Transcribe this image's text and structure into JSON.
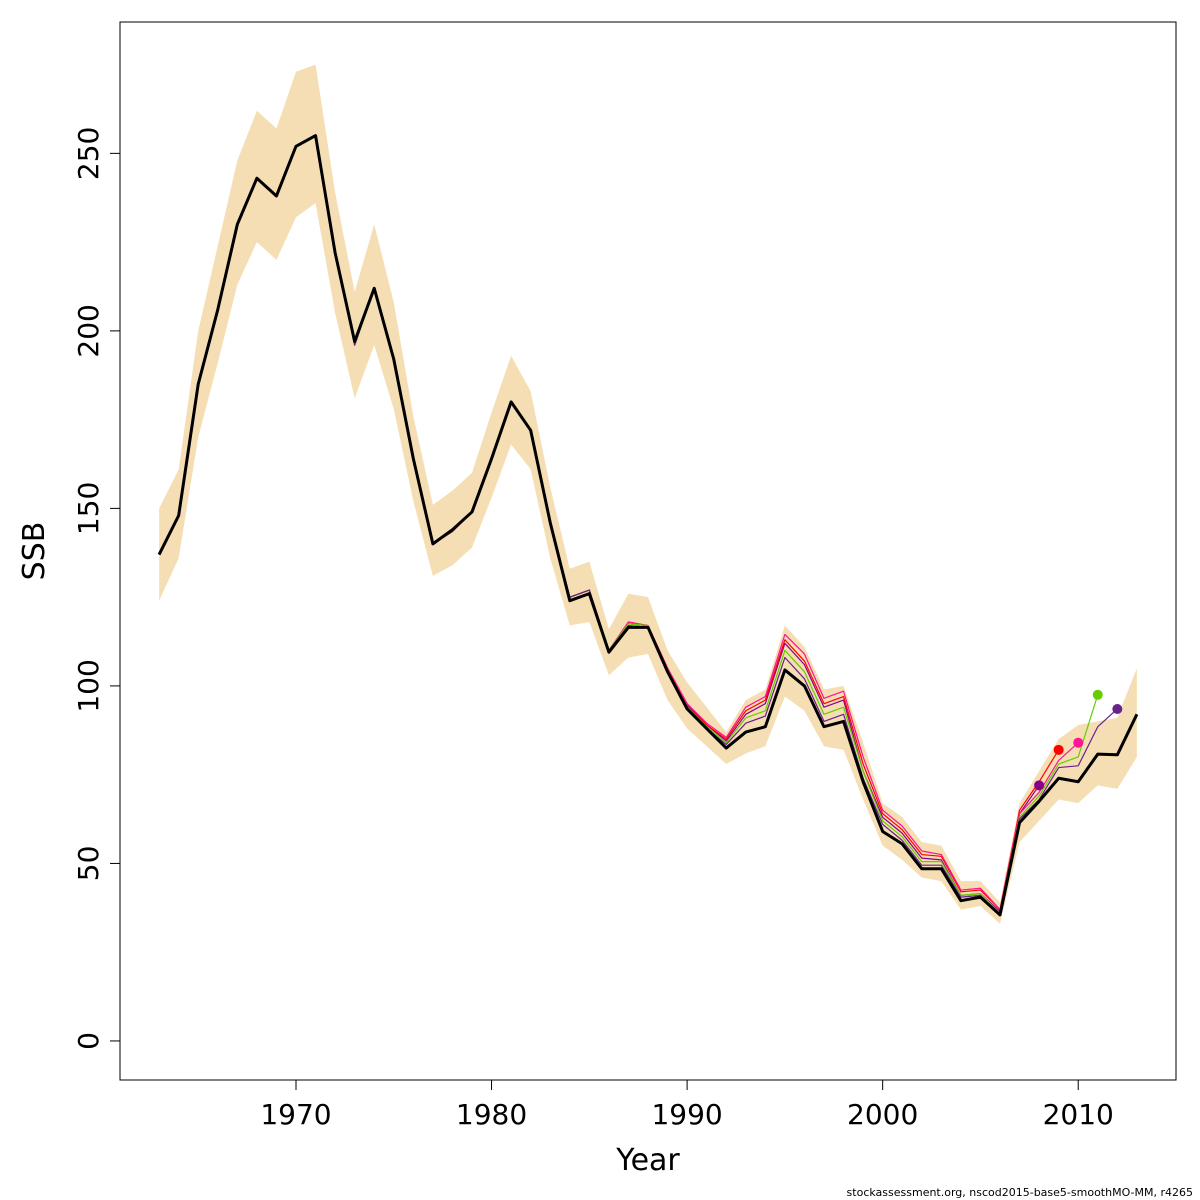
{
  "chart_data": {
    "type": "line",
    "title": "",
    "xlabel": "Year",
    "ylabel": "SSB",
    "xlim": [
      1961,
      2015
    ],
    "ylim": [
      -11,
      287
    ],
    "xticks": [
      "1970",
      "1980",
      "1990",
      "2000",
      "2010"
    ],
    "yticks": [
      "0",
      "50",
      "100",
      "150",
      "200",
      "250"
    ],
    "grid": false,
    "legend": "none",
    "credit": "stockassessment.org, nscod2015-base5-smoothMO-MM, r4265",
    "colors": {
      "band": "#f5deb3",
      "main": "#000000",
      "retro": [
        "#8b008b",
        "#ff0000",
        "#ff1493",
        "#66cd00",
        "#68228b"
      ]
    },
    "band": {
      "years": [
        1963,
        1964,
        1965,
        1966,
        1967,
        1968,
        1969,
        1970,
        1971,
        1972,
        1973,
        1974,
        1975,
        1976,
        1977,
        1978,
        1979,
        1980,
        1981,
        1982,
        1983,
        1984,
        1985,
        1986,
        1987,
        1988,
        1989,
        1990,
        1991,
        1992,
        1993,
        1994,
        1995,
        1996,
        1997,
        1998,
        1999,
        2000,
        2001,
        2002,
        2003,
        2004,
        2005,
        2006,
        2007,
        2008,
        2009,
        2010,
        2011,
        2012,
        2013
      ],
      "lower": [
        124,
        136,
        170,
        191,
        213,
        225,
        220,
        232,
        236,
        205,
        181,
        196,
        178,
        152,
        131,
        134,
        139,
        153,
        168,
        161,
        136,
        117,
        118,
        103,
        108,
        109,
        96,
        88,
        83,
        78,
        81,
        83,
        97,
        93,
        83,
        82,
        68,
        55,
        51,
        46,
        45,
        37,
        38,
        33,
        56,
        62,
        68,
        67,
        72,
        71,
        80
      ],
      "upper": [
        150,
        161,
        200,
        224,
        248,
        262,
        257,
        273,
        275,
        239,
        211,
        230,
        208,
        176,
        151,
        155,
        160,
        177,
        193,
        183,
        156,
        133,
        135,
        116,
        126,
        125,
        110,
        101,
        94,
        87,
        96,
        99,
        117,
        111,
        99,
        100,
        84,
        67,
        63,
        56,
        55,
        45,
        45,
        39,
        67,
        76,
        85,
        89,
        90,
        91,
        105
      ]
    },
    "series": [
      {
        "x": [
          1963,
          1964,
          1965,
          1966,
          1967,
          1968,
          1969,
          1970,
          1971,
          1972,
          1973,
          1974,
          1975,
          1976,
          1977,
          1978,
          1979,
          1980,
          1981,
          1982,
          1983,
          1984,
          1985,
          1986,
          1987,
          1988,
          1989,
          1990,
          1991,
          1992,
          1993,
          1994,
          1995,
          1996,
          1997,
          1998,
          1999,
          2000,
          2001,
          2002,
          2003,
          2004,
          2005,
          2006,
          2007,
          2008,
          2009,
          2010,
          2011,
          2012,
          2013
        ],
        "values": [
          137,
          148,
          185,
          206,
          230,
          243,
          238,
          252,
          255,
          222,
          197,
          212,
          192,
          164,
          140,
          144,
          149,
          164,
          180,
          172,
          146,
          124,
          126,
          109.5,
          116.5,
          116.5,
          104,
          93.5,
          88,
          82.5,
          87,
          88.5,
          104.5,
          100,
          88.5,
          90,
          73,
          59,
          55.5,
          48.5,
          48.5,
          39.5,
          40.5,
          35.5,
          61.5,
          67.5,
          74,
          73,
          80.8,
          80.6,
          92
        ]
      },
      {
        "x": [
          1963,
          1964,
          1965,
          1966,
          1967,
          1968,
          1969,
          1970,
          1971,
          1972,
          1973,
          1974,
          1975,
          1976,
          1977,
          1978,
          1979,
          1980,
          1981,
          1982,
          1983,
          1984,
          1985,
          1986,
          1987,
          1988,
          1989,
          1990,
          1991,
          1992,
          1993,
          1994,
          1995,
          1996,
          1997,
          1998,
          1999,
          2000,
          2001,
          2002,
          2003,
          2004,
          2005,
          2006,
          2007,
          2008
        ],
        "values": [
          137,
          148,
          185,
          206,
          230,
          243,
          238,
          252,
          255,
          222,
          196,
          212,
          192,
          164,
          140,
          143.5,
          149,
          164,
          180,
          172,
          146,
          125,
          127,
          110,
          117.5,
          117,
          105,
          94.5,
          89,
          84.5,
          92,
          95,
          112,
          106,
          94,
          96,
          76,
          63,
          58.5,
          51.5,
          51,
          41,
          41.5,
          36.5,
          64,
          72
        ]
      },
      {
        "x": [
          1963,
          1964,
          1965,
          1966,
          1967,
          1968,
          1969,
          1970,
          1971,
          1972,
          1973,
          1974,
          1975,
          1976,
          1977,
          1978,
          1979,
          1980,
          1981,
          1982,
          1983,
          1984,
          1985,
          1986,
          1987,
          1988,
          1989,
          1990,
          1991,
          1992,
          1993,
          1994,
          1995,
          1996,
          1997,
          1998,
          1999,
          2000,
          2001,
          2002,
          2003,
          2004,
          2005,
          2006,
          2007,
          2008,
          2009
        ],
        "values": [
          137,
          148,
          185,
          206,
          230,
          243,
          238,
          252,
          255,
          222,
          196,
          212,
          192,
          164,
          140,
          143.5,
          149,
          164,
          180,
          172,
          146,
          125,
          127,
          110,
          118,
          117,
          105,
          95,
          89,
          85,
          93,
          96,
          113,
          107,
          95,
          97,
          78,
          64,
          59.5,
          52.5,
          52,
          42,
          42.5,
          37,
          65,
          73,
          82
        ]
      },
      {
        "x": [
          1963,
          1964,
          1965,
          1966,
          1967,
          1968,
          1969,
          1970,
          1971,
          1972,
          1973,
          1974,
          1975,
          1976,
          1977,
          1978,
          1979,
          1980,
          1981,
          1982,
          1983,
          1984,
          1985,
          1986,
          1987,
          1988,
          1989,
          1990,
          1991,
          1992,
          1993,
          1994,
          1995,
          1996,
          1997,
          1998,
          1999,
          2000,
          2001,
          2002,
          2003,
          2004,
          2005,
          2006,
          2007,
          2008,
          2009,
          2010
        ],
        "values": [
          137,
          148,
          185,
          206,
          230,
          243,
          238,
          252,
          255,
          222,
          196,
          212,
          192,
          164,
          140,
          143.5,
          149,
          164,
          180,
          172,
          146,
          125,
          127,
          110,
          118,
          117,
          105,
          95,
          89.5,
          85.5,
          94,
          97,
          114.5,
          109,
          96.5,
          98.5,
          80,
          65,
          60.5,
          53.5,
          52.5,
          42.5,
          43,
          37,
          64,
          70,
          79,
          84
        ]
      },
      {
        "x": [
          1963,
          1964,
          1965,
          1966,
          1967,
          1968,
          1969,
          1970,
          1971,
          1972,
          1973,
          1974,
          1975,
          1976,
          1977,
          1978,
          1979,
          1980,
          1981,
          1982,
          1983,
          1984,
          1985,
          1986,
          1987,
          1988,
          1989,
          1990,
          1991,
          1992,
          1993,
          1994,
          1995,
          1996,
          1997,
          1998,
          1999,
          2000,
          2001,
          2002,
          2003,
          2004,
          2005,
          2006,
          2007,
          2008,
          2009,
          2010,
          2011
        ],
        "values": [
          137,
          148,
          185,
          206,
          230,
          243,
          238,
          252,
          255,
          222,
          196,
          212,
          192,
          164,
          140,
          143.5,
          149,
          164,
          180,
          172,
          146,
          125,
          127,
          110,
          117.5,
          117,
          104.5,
          94,
          88.5,
          84,
          91,
          93,
          110,
          104,
          92,
          94,
          76,
          62,
          57.5,
          50.5,
          50.5,
          41,
          41.5,
          36,
          63,
          69,
          78,
          80,
          97.5
        ]
      },
      {
        "x": [
          1963,
          1964,
          1965,
          1966,
          1967,
          1968,
          1969,
          1970,
          1971,
          1972,
          1973,
          1974,
          1975,
          1976,
          1977,
          1978,
          1979,
          1980,
          1981,
          1982,
          1983,
          1984,
          1985,
          1986,
          1987,
          1988,
          1989,
          1990,
          1991,
          1992,
          1993,
          1994,
          1995,
          1996,
          1997,
          1998,
          1999,
          2000,
          2001,
          2002,
          2003,
          2004,
          2005,
          2006,
          2007,
          2008,
          2009,
          2010,
          2011,
          2012
        ],
        "values": [
          137,
          148,
          185,
          206,
          230,
          243,
          238,
          252,
          255,
          222,
          196,
          212,
          192,
          164,
          140,
          143.5,
          149,
          164,
          180,
          172,
          146,
          125,
          127,
          110,
          117,
          116.5,
          104,
          93.5,
          88,
          83.5,
          89.5,
          91.5,
          108,
          102,
          90,
          92,
          74,
          61,
          56.5,
          49.5,
          49.5,
          40.5,
          41,
          35.5,
          62.5,
          68,
          77,
          77.5,
          88.5,
          93.5
        ]
      }
    ]
  }
}
